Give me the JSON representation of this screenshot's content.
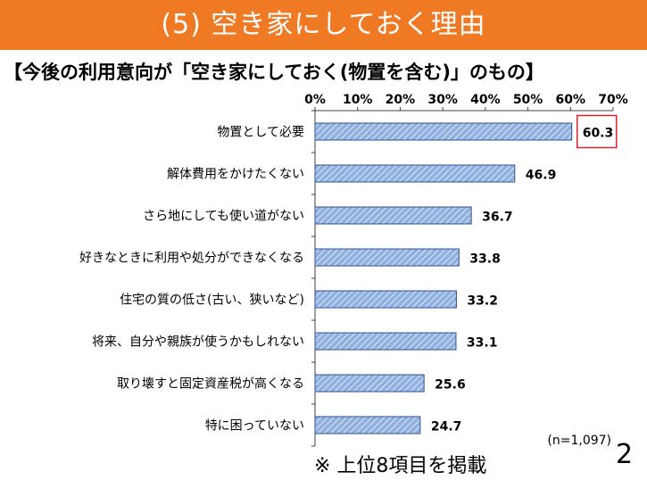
{
  "slide": {
    "banner_title": "(5) 空き家にしておく理由",
    "subtitle": "【今後の利用意向が「空き家にしておく(物置を含む)」のもの】",
    "footnote": "※ 上位8項目を掲載",
    "page_number": "2"
  },
  "colors": {
    "banner": "#f07a24",
    "bar_fill": "#8fb0e0",
    "bar_hatch": "#ffffff",
    "bar_border": "#2f4f8f",
    "highlight_box": "#e0202a"
  },
  "chart_data": {
    "type": "bar",
    "orientation": "horizontal",
    "categories": [
      "物置として必要",
      "解体費用をかけたくない",
      "さら地にしても使い道がない",
      "好きなときに利用や処分ができなくなる",
      "住宅の質の低さ(古い、狭いなど)",
      "将来、自分や親族が使うかもしれない",
      "取り壊すと固定資産税が高くなる",
      "特に困っていない"
    ],
    "values": [
      60.3,
      46.9,
      36.7,
      33.8,
      33.2,
      33.1,
      25.6,
      24.7
    ],
    "value_labels": [
      "60.3",
      "46.9",
      "36.7",
      "33.8",
      "33.2",
      "33.1",
      "25.6",
      "24.7"
    ],
    "x_ticks": [
      "0%",
      "10%",
      "20%",
      "30%",
      "40%",
      "50%",
      "60%",
      "70%"
    ],
    "xlim": [
      0,
      70
    ],
    "axis_position": "top",
    "highlighted_category_index": 0,
    "annotation": "(n=1,097)"
  }
}
